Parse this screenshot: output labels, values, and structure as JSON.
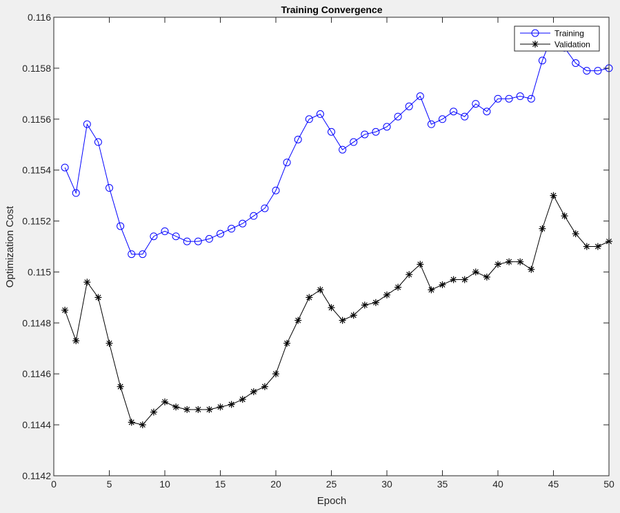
{
  "chart_data": {
    "type": "line",
    "title": "Training Convergence",
    "xlabel": "Epoch",
    "ylabel": "Optimization Cost",
    "xlim": [
      0,
      50
    ],
    "ylim": [
      0.1142,
      0.116
    ],
    "xticks": [
      0,
      5,
      10,
      15,
      20,
      25,
      30,
      35,
      40,
      45,
      50
    ],
    "xtick_labels": [
      "0",
      "5",
      "10",
      "15",
      "20",
      "25",
      "30",
      "35",
      "40",
      "45",
      "50"
    ],
    "yticks": [
      0.1142,
      0.1144,
      0.1146,
      0.1148,
      0.115,
      0.1152,
      0.1154,
      0.1156,
      0.1158,
      0.116
    ],
    "ytick_labels": [
      "0.1142",
      "0.1144",
      "0.1146",
      "0.1148",
      "0.115",
      "0.1152",
      "0.1154",
      "0.1156",
      "0.1158",
      "0.116"
    ],
    "grid": false,
    "legend": "top-right",
    "x": [
      1,
      2,
      3,
      4,
      5,
      6,
      7,
      8,
      9,
      10,
      11,
      12,
      13,
      14,
      15,
      16,
      17,
      18,
      19,
      20,
      21,
      22,
      23,
      24,
      25,
      26,
      27,
      28,
      29,
      30,
      31,
      32,
      33,
      34,
      35,
      36,
      37,
      38,
      39,
      40,
      41,
      42,
      43,
      44,
      45,
      46,
      47,
      48,
      49,
      50
    ],
    "series": [
      {
        "name": "Training",
        "color": "#0000ff",
        "marker": "circle",
        "values": [
          0.11541,
          0.11531,
          0.11558,
          0.11551,
          0.11533,
          0.11518,
          0.11507,
          0.11507,
          0.11514,
          0.11516,
          0.11514,
          0.11512,
          0.11512,
          0.11513,
          0.11515,
          0.11517,
          0.11519,
          0.11522,
          0.11525,
          0.11532,
          0.11543,
          0.11552,
          0.1156,
          0.11562,
          0.11555,
          0.11548,
          0.11551,
          0.11554,
          0.11555,
          0.11557,
          0.11561,
          0.11565,
          0.11569,
          0.11558,
          0.1156,
          0.11563,
          0.11561,
          0.11566,
          0.11563,
          0.11568,
          0.11568,
          0.11569,
          0.11568,
          0.11583,
          0.11594,
          0.11588,
          0.11582,
          0.11579,
          0.11579,
          0.1158
        ]
      },
      {
        "name": "Validation",
        "color": "#000000",
        "marker": "asterisk",
        "values": [
          0.11485,
          0.11473,
          0.11496,
          0.1149,
          0.11472,
          0.11455,
          0.11441,
          0.1144,
          0.11445,
          0.11449,
          0.11447,
          0.11446,
          0.11446,
          0.11446,
          0.11447,
          0.11448,
          0.1145,
          0.11453,
          0.11455,
          0.1146,
          0.11472,
          0.11481,
          0.1149,
          0.11493,
          0.11486,
          0.11481,
          0.11483,
          0.11487,
          0.11488,
          0.11491,
          0.11494,
          0.11499,
          0.11503,
          0.11493,
          0.11495,
          0.11497,
          0.11497,
          0.115,
          0.11498,
          0.11503,
          0.11504,
          0.11504,
          0.11501,
          0.11517,
          0.1153,
          0.11522,
          0.11515,
          0.1151,
          0.1151,
          0.11512
        ]
      }
    ]
  }
}
